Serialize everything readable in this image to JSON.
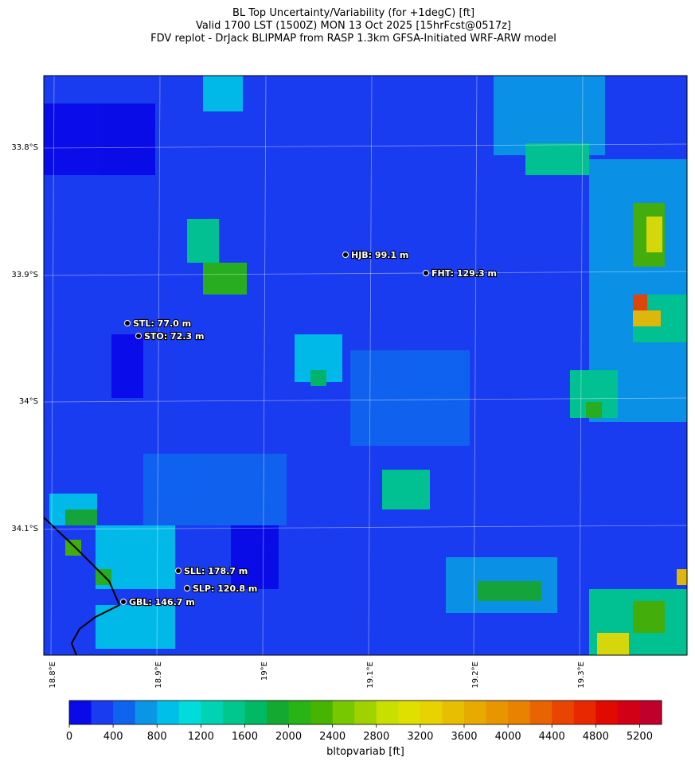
{
  "title": [
    "BL Top Uncertainty/Variability (for +1degC) [ft]",
    "Valid 1700 LST (1500Z) MON 13 Oct 2025 [15hrFcst@0517z]",
    "FDV replot - DrJack BLIPMAP from RASP 1.3km GFSA-Initiated WRF-ARW model"
  ],
  "map": {
    "lat_ticks": [
      "33.8°S",
      "33.9°S",
      "34°S",
      "34.1°S"
    ],
    "lon_ticks": [
      "18.8°E",
      "18.9°E",
      "19°E",
      "19.1°E",
      "19.2°E",
      "19.3°E"
    ],
    "stations": [
      {
        "label": "HJB: 99.1 m"
      },
      {
        "label": "FHT: 129.3 m"
      },
      {
        "label": "STL: 77.0 m"
      },
      {
        "label": "STO: 72.3 m"
      },
      {
        "label": "SLL: 178.7 m"
      },
      {
        "label": "SLP: 120.8 m"
      },
      {
        "label": "GBL: 146.7 m"
      }
    ]
  },
  "colorbar": {
    "range": [
      0,
      5400
    ],
    "ticks": [
      0,
      400,
      800,
      1200,
      1600,
      2000,
      2400,
      2800,
      3200,
      3600,
      4000,
      4400,
      4800,
      5200
    ],
    "label": "bltopvariab [ft]",
    "colors": [
      "#0a0ae8",
      "#1a3cf0",
      "#0f64ee",
      "#0a96e6",
      "#00c0e8",
      "#00dcdc",
      "#00d2b4",
      "#00c88c",
      "#00b964",
      "#14aa32",
      "#28b414",
      "#46b400",
      "#78c800",
      "#a0d200",
      "#c8e000",
      "#e0e000",
      "#e8d200",
      "#e8be00",
      "#e8aa00",
      "#e89600",
      "#e88200",
      "#e86400",
      "#e84600",
      "#e82800",
      "#e00a00",
      "#d20014",
      "#c0002a"
    ]
  }
}
